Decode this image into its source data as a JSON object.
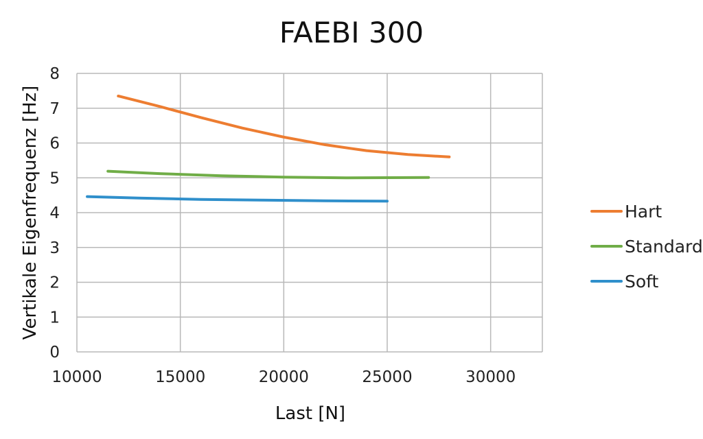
{
  "chart_data": {
    "type": "line",
    "title": "FAEBI 300",
    "xlabel": "Last [N]",
    "ylabel": "Vertikale Eigenfrequenz [Hz]",
    "xlim": [
      10000,
      32500
    ],
    "ylim": [
      0,
      8
    ],
    "xticks": [
      10000,
      15000,
      20000,
      25000,
      30000
    ],
    "yticks": [
      0,
      1,
      2,
      3,
      4,
      5,
      6,
      7,
      8
    ],
    "grid": true,
    "legend_position": "right",
    "series": [
      {
        "name": "Hart",
        "color": "#ED7D31",
        "x": [
          12000,
          14000,
          16000,
          18000,
          20000,
          22000,
          24000,
          26000,
          28000
        ],
        "y": [
          7.35,
          7.05,
          6.73,
          6.43,
          6.17,
          5.95,
          5.78,
          5.67,
          5.6
        ]
      },
      {
        "name": "Standard",
        "color": "#70AD47",
        "x": [
          11500,
          14000,
          17000,
          20000,
          23000,
          27000
        ],
        "y": [
          5.19,
          5.12,
          5.06,
          5.02,
          5.0,
          5.01
        ]
      },
      {
        "name": "Soft",
        "color": "#2F8FCB",
        "x": [
          10500,
          13000,
          16000,
          19000,
          22000,
          25000
        ],
        "y": [
          4.46,
          4.42,
          4.38,
          4.36,
          4.34,
          4.33
        ]
      }
    ]
  }
}
